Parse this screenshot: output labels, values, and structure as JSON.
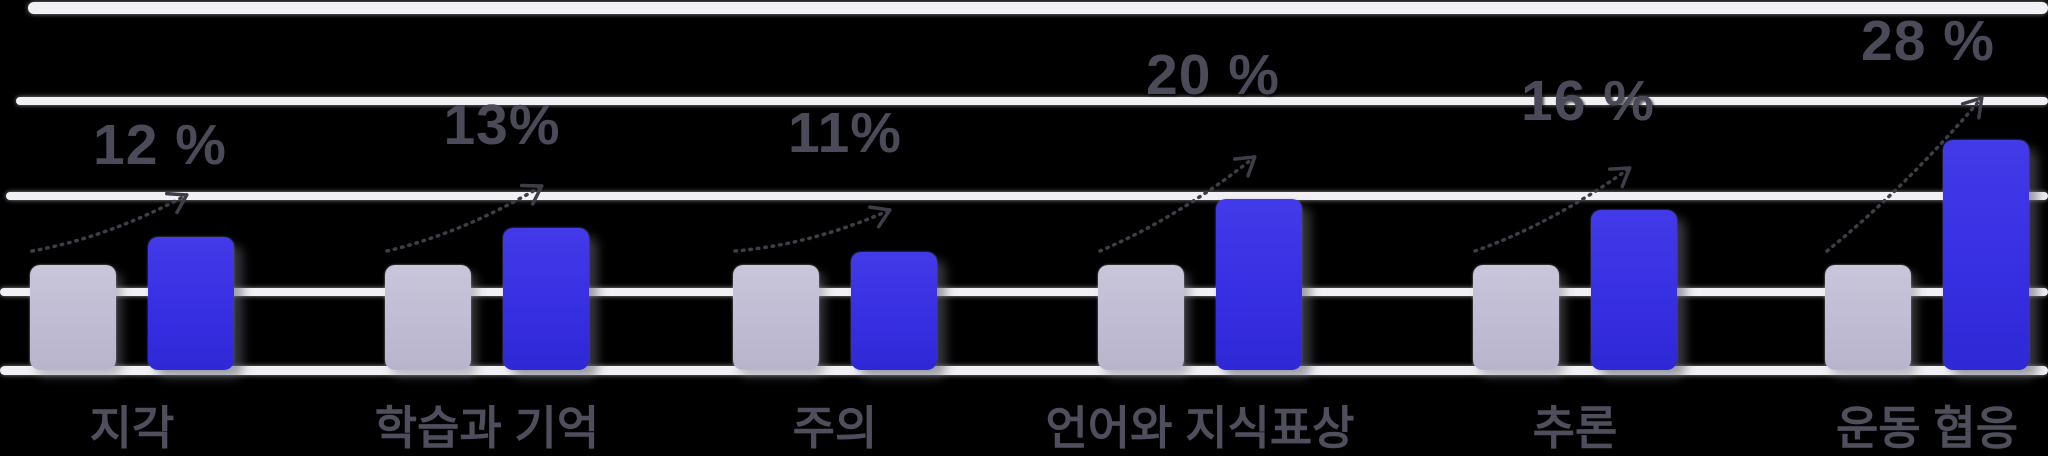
{
  "chart_data": {
    "type": "bar",
    "title": "",
    "subtitle": "",
    "categories": [
      "지각",
      "학습과 기억",
      "주의",
      "언어와 지식표상",
      "추론",
      "운동 협응"
    ],
    "series": [
      {
        "name": "baseline-bar",
        "color": "#c2bed5",
        "height_rel": [
          1,
          1,
          1,
          1,
          1,
          1
        ]
      },
      {
        "name": "improved-bar",
        "color": "#372fe2",
        "height_rel": [
          1.27,
          1.35,
          1.12,
          1.63,
          1.52,
          2.19
        ]
      }
    ],
    "data_labels": [
      "12 %",
      "13%",
      "11%",
      "20 %",
      "16 %",
      "28 %"
    ],
    "improvement_values": [
      12,
      13,
      11,
      20,
      16,
      28
    ],
    "legend_position": "none",
    "grid": "horizontal",
    "gridline_count": 5,
    "background_color": "#000000",
    "annotation_style": "dotted-increase-arrows"
  },
  "colors": {
    "baseline_bar": "#c2bed5",
    "improved_bar": "#372fe2",
    "gridline": "#f1f0f4",
    "label_text": "#4b4a58",
    "category_text": "#4f4e5d",
    "arrow": "#3e3e48"
  }
}
